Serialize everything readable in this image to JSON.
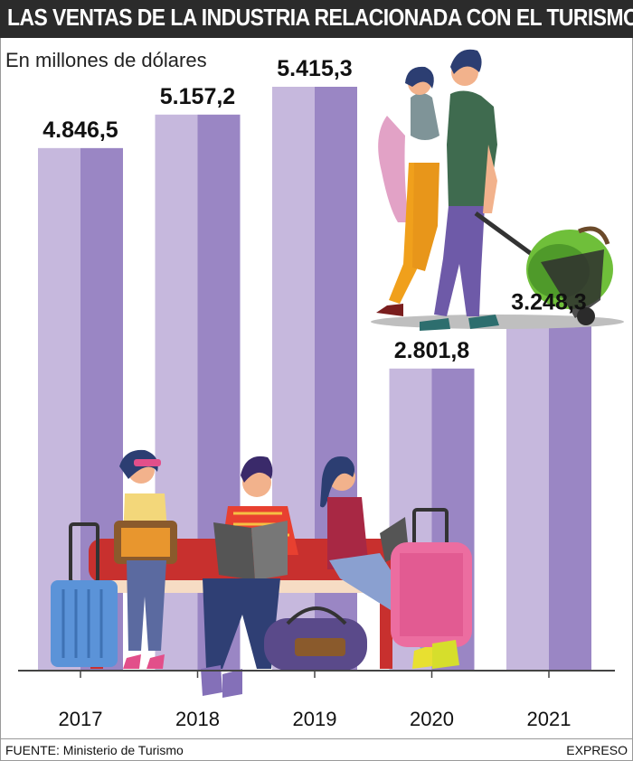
{
  "header": {
    "title": "LAS VENTAS DE LA INDUSTRIA RELACIONADA CON EL TURISMO"
  },
  "subtitle": "En millones de dólares",
  "footer": {
    "source": "FUENTE: Ministerio de Turismo",
    "brand": "EXPRESO"
  },
  "colors": {
    "bar_light": "#c6b8dd",
    "bar_dark": "#9a86c4",
    "title_bg": "#2b2b2b"
  },
  "chart_data": {
    "type": "bar",
    "title": "LAS VENTAS DE LA INDUSTRIA RELACIONADA CON EL TURISMO",
    "subtitle": "En millones de dólares",
    "categories": [
      "2017",
      "2018",
      "2019",
      "2020",
      "2021"
    ],
    "values": [
      4846.5,
      5157.2,
      5415.3,
      2801.8,
      3248.3
    ],
    "value_labels": [
      "4.846,5",
      "5.157,2",
      "5.415,3",
      "2.801,8",
      "3.248,3"
    ],
    "grid": false,
    "legend": "none"
  },
  "illustrations": [
    "couple-with-luggage-illustration",
    "travelers-on-bench-illustration"
  ]
}
